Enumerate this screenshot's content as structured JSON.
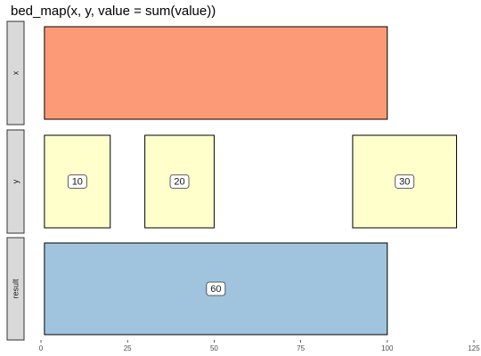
{
  "chart_data": {
    "type": "bar",
    "title": "bed_map(x, y, value = sum(value))",
    "facets": [
      "x",
      "y",
      "result"
    ],
    "xlim": [
      0,
      125
    ],
    "x_ticks": [
      0,
      25,
      50,
      75,
      100,
      125
    ],
    "intervals": [
      {
        "facet": "x",
        "start": 1,
        "end": 100,
        "color": "#FC9A77"
      },
      {
        "facet": "y",
        "start": 1,
        "end": 20,
        "value": "10",
        "color": "#FFFFCC"
      },
      {
        "facet": "y",
        "start": 30,
        "end": 50,
        "value": "20",
        "color": "#FFFFCC"
      },
      {
        "facet": "y",
        "start": 90,
        "end": 120,
        "value": "30",
        "color": "#FFFFCC"
      },
      {
        "facet": "result",
        "start": 1,
        "end": 100,
        "value": "60",
        "color": "#A0C4DE"
      }
    ],
    "xlabel": "",
    "ylabel": "",
    "grid": false,
    "legend": "none"
  }
}
